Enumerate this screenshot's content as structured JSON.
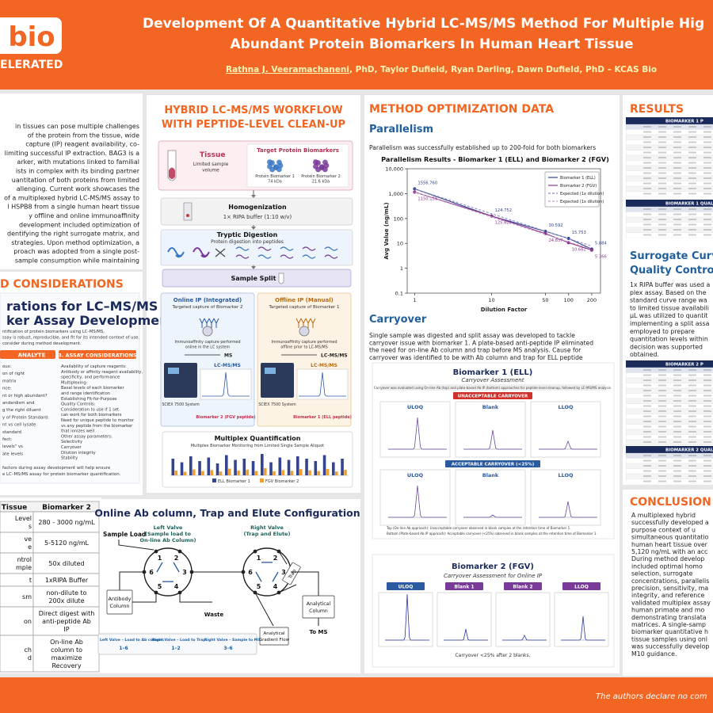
{
  "header": {
    "logo_text": "bio",
    "logo_subtext": "ELERATED",
    "title_lines": [
      "Development Of A Quantitative Hybrid LC-MS/MS Method For Multiple Hig",
      "Abundant Protein Biomarkers In Human Heart Tissue"
    ],
    "authors_lead": "Rathna J. Veeramachaneni",
    "authors_rest": ", PhD, Taylor Dufield, Ryan Darling, Dawn Dufield, PhD – KCAS Bio"
  },
  "introduction": {
    "lines": [
      "in tissues can pose multiple challenges",
      "of the protein from the tissue, wide",
      "capture (IP) reagent availability, co-",
      "limiting successful IP extraction. BAG3 is a",
      "arker, with mutations linked to familial",
      "ists in complex with its binding partner",
      "uantitation of both proteins from limited",
      "allenging. Current work showcases the",
      "of a multiplexed hybrid LC-MS/MS assay to",
      "l HSPB8 from a single human heart tissue",
      "y offline and online immunoaffinity",
      "development included optimization of",
      "dentifying the right surrogate matrix, and",
      "strategies. Upon method optimization, a",
      "proach was adopted from a single post-",
      "sample consumption while maintaining"
    ]
  },
  "considerations": {
    "heading": "D CONSIDERATIONS",
    "figure_title_lines": [
      "rations for LC–MS/MS",
      "ker Assay Development"
    ],
    "intro_lines": [
      "ntification of protein biomarkers using LC–MS/MS,",
      "ssay is robust, reproducible, and fit for its intended context of use.",
      "consider during method development."
    ],
    "analyte_header": "ANALYTE",
    "analyte_items": [
      "ous:",
      "on of right",
      "matrix",
      "nce:",
      "nt or high abundant?",
      "andardism and",
      "g the right diluent",
      "y of Protein Standard:",
      "nt vs cell lysate",
      "standard",
      "fect:",
      "levels\" vs",
      "ate levels"
    ],
    "assay_header": "3. ASSAY CONSIDERATIONS",
    "assay_items": [
      "Availability of capture reagents:",
      "Antibody or affinity reagent availability,",
      "specificity, and performance",
      "Multiplexing:",
      "Basal levels of each biomarker",
      "and range identification",
      "Establishing Fit-for-Purpose",
      "Quality Controls:",
      "Consideration to use if 1 set",
      "can work for both biomarkers",
      "Need for unique peptide to monitor",
      "vs any peptide from the biomarker",
      "that ionizes well",
      "Other assay parameters:",
      "Selectivity",
      "Carryover",
      "Dilution integrity",
      "Stability"
    ],
    "footer_lines": [
      "factors during assay development will help ensure",
      "e LC–MS/MS assay for protein biomarker quantification."
    ]
  },
  "tissue_table": {
    "header": [
      "Tissue",
      "Biomarker 2"
    ],
    "rows": [
      [
        [
          "Level",
          "s"
        ],
        [
          "280 - 3000 ng/mL"
        ]
      ],
      [
        [
          "ve",
          "e"
        ],
        [
          "5-5120 ng/mL"
        ]
      ],
      [
        [
          "ntrol",
          "mple"
        ],
        [
          "50x diluted"
        ]
      ],
      [
        [
          "t"
        ],
        [
          "1xRIPA Buffer"
        ]
      ],
      [
        [
          "sm"
        ],
        [
          "non-dilute to",
          "200x dilute"
        ]
      ],
      [
        [
          "on"
        ],
        [
          "Direct digest with",
          "anti-peptide Ab",
          "IP"
        ]
      ],
      [
        [
          "ch",
          "d"
        ],
        [
          "On-line Ab",
          "column to",
          "maximize",
          "Recovery"
        ]
      ]
    ]
  },
  "workflow": {
    "heading_lines": [
      "HYBRID LC-MS/MS WORKFLOW",
      "WITH PEPTIDE-LEVEL CLEAN-UP"
    ],
    "tissue_label": "Tissue",
    "tissue_note_lines": [
      "Limited sample",
      "volume"
    ],
    "targets_title": "Target Protein Biomarkers",
    "protein1_lines": [
      "Protein Biomarker 1",
      "74 kDa"
    ],
    "protein2_lines": [
      "Protein Biomarker 2",
      "21.6 kDa"
    ],
    "homogenization": "Homogenization",
    "homogenization_note": "1× RIPA buffer (1:10 w/v)",
    "digestion": "Tryptic Digestion",
    "digestion_note": "Protein digestion into peptides",
    "split": "Sample Split",
    "online": {
      "title": "Online IP (Integrated)",
      "subtitle": "Targeted capture of Biomarker 2",
      "note_lines": [
        "Immunoaffinity capture performed",
        "online in the LC system"
      ],
      "ms": "MS",
      "system_title": "LC-MS/MS",
      "system_name": "SCIEX 7500 System",
      "peptide": "Biomarker 2 (FGV peptide)"
    },
    "offline": {
      "title": "Offline IP (Manual)",
      "subtitle": "Targeted capture of Biomarker 1",
      "note_lines": [
        "Immunoaffinity capture performed",
        "offline prior to LC-MS/MS"
      ],
      "ms": "LC-MS/MS",
      "system_title": "LC-MS/MS",
      "system_name": "SCIEX 7500 System",
      "peptide": "Biomarker 1 (ELL peptide)"
    },
    "multiplex": {
      "title": "Multiplex Quantification",
      "subtitle": "Multiplex Biomarker Monitoring from Limited Single Sample Aliquot",
      "ylim": [
        0,
        100
      ],
      "series": [
        {
          "name": "ELL Biomarker 1",
          "color": "#34448f",
          "values": [
            70,
            55,
            80,
            60,
            75,
            50,
            85,
            65,
            70,
            60,
            90,
            55,
            75,
            65,
            80,
            70,
            60,
            85,
            55,
            70
          ]
        },
        {
          "name": "FGV Biomarker 2",
          "color": "#f0a030",
          "values": [
            20,
            15,
            25,
            18,
            22,
            16,
            28,
            20,
            24,
            18,
            30,
            17,
            22,
            19,
            26,
            21,
            18,
            27,
            16,
            23
          ]
        }
      ]
    }
  },
  "online_config": {
    "title": "Online Ab column, Trap and Elute Configuration",
    "sample_load": "Sample Load",
    "left_valve_lines": [
      "Left Valve",
      "(Sample load to",
      "On-line Ab Column)"
    ],
    "right_valve_lines": [
      "Right Valve",
      "(Trap and Elute)"
    ],
    "left_ports": [
      "1",
      "2",
      "3",
      "4",
      "5",
      "6"
    ],
    "right_ports": [
      "1",
      "2",
      "3",
      "4",
      "5",
      "6"
    ],
    "antibody_column_lines": [
      "Antibody",
      "Column"
    ],
    "waste": "Waste",
    "trap": "Trap",
    "analytical_column_lines": [
      "Analytical",
      "Column"
    ],
    "gradient_lines": [
      "Analytical",
      "Gradient Flow"
    ],
    "to_ms": "To MS",
    "legend": [
      {
        "label": "Left Valve – Load to Ab column:",
        "ports": "1–6"
      },
      {
        "label": "Right Valve – Load to Trap:",
        "ports": "1–2"
      },
      {
        "label": "Right Valve – Sample to MS:",
        "ports": "3–6"
      }
    ]
  },
  "method_optimization": {
    "heading": "METHOD OPTIMIZATION DATA",
    "parallelism": {
      "heading": "Parallelism",
      "text": "Parallelism was successfully established up to 200-fold for both biomarkers",
      "chart": {
        "type": "line",
        "title": "Parallelism Results - Biomarker 1 (ELL) and Biomarker 2 (FGV)",
        "x_label": "Dilution Factor",
        "y_label": "Avg Value (ng/mL)",
        "log_x": true,
        "log_y": true,
        "x": [
          1,
          10,
          50,
          100,
          200
        ],
        "xlim": [
          0.8,
          260
        ],
        "ylim": [
          0.1,
          10000
        ],
        "xticks": [
          1,
          10,
          50,
          100,
          200
        ],
        "yticks": [
          0.1,
          1,
          10,
          100,
          {
            "value": 1000,
            "label": "1,000"
          },
          {
            "value": 10000,
            "label": "10,000"
          }
        ],
        "legend": "upper right",
        "series": [
          {
            "name": "Biomarker 1 (ELL)",
            "color": "#34448f",
            "line_style": "solid",
            "values": [
              1556.76,
              124.752,
              30.592,
              15.753,
              5.884
            ],
            "value_labels": [
              "1556.760",
              "124.752",
              "30.592",
              "15.753",
              "5.884"
            ]
          },
          {
            "name": "Biomarker 2 (FGV)",
            "color": "#8a3a8f",
            "line_style": "solid",
            "values": [
              1150.136,
              125.623,
              24.857,
              10.662,
              5.366
            ],
            "value_labels": [
              "1150.136",
              "125.623",
              "24.857",
              "10.662",
              "5.366"
            ]
          },
          {
            "name": "Expected (1x dilution)",
            "color": "#8c8fc8",
            "line_style": "dashed",
            "values": [
              1556.76,
              155.68,
              31.14,
              15.57,
              7.78
            ]
          },
          {
            "name": "Expected (1x dilution)",
            "color": "#c79ac8",
            "line_style": "dashed",
            "values": [
              1150.14,
              115.01,
              23.0,
              11.5,
              5.75
            ]
          }
        ]
      }
    },
    "carryover": {
      "heading": "Carryover",
      "text_lines": [
        "Single sample was digested and split assay was developed to tackle",
        "carryover issue with biomarker 1. A plate-based anti-peptide IP eliminated",
        "the need for on-line Ab column and trap before MS analysis. Cause for",
        "carryover was identified to be with Ab column and trap for ELL peptide"
      ],
      "biomarker1": {
        "title": "Biomarker 1 (ELL)",
        "subtitle": "Carryover Assessment",
        "note": "Carryover was evaluated using On-line Ab (top) and plate-based Ab IP (bottom) approaches for peptide level cleanup, followed by LC-MS/MS analysis.",
        "unacceptable": "UNACCEPTABLE CARRYOVER",
        "acceptable": "ACCEPTABLE CARRYOVER (<25%)",
        "panels": [
          "ULOQ",
          "Blank",
          "LLOQ"
        ],
        "footnotes": [
          "Top (On-line Ab approach): Unacceptable carryover observed in blank samples at the retention time of Biomarker 1.",
          "Bottom (Plate-based Ab IP approach): Acceptable carryover (<25%) observed in blank samples at the retention time of Biomarker 1."
        ]
      },
      "biomarker2": {
        "title": "Biomarker 2 (FGV)",
        "subtitle": "Carryover Assessment for Online IP",
        "panels": [
          "ULOQ",
          "Blank 1",
          "Blank 2",
          "LLOQ"
        ],
        "note": "Carryover <25% after 2 blanks."
      }
    }
  },
  "results": {
    "heading": "RESULTS",
    "table_headers": [
      "BIOMARKER 1 P",
      "BIOMARKER 1 QUALITY CONT",
      "BIOMARKER 2 P",
      "BIOMARKER 2 QUALITY CONTR"
    ],
    "surrogate_heading_lines": [
      "Surrogate Curve",
      "Quality Controls"
    ],
    "surrogate_lines": [
      "1x RIPA buffer was used a",
      "plex assay. Based on the",
      "standard curve range wa",
      "to limited tissue availabili",
      "µL was utilized to quantit",
      "implementing a split assa",
      "employed to prepare",
      "quantitation levels within",
      "decision was supported",
      "obtained."
    ]
  },
  "conclusion": {
    "heading": "CONCLUSION",
    "lines": [
      "A multiplexed hybrid",
      "successfully developed a",
      "purpose context of u",
      "simultaneous quantitatio",
      "human heart tissue over",
      "5,120 ng/mL with an acc",
      "During method develop",
      "included optimal homo",
      "selection, surrogate",
      "concentrations, parallelis",
      "precision, sensitivity, ma",
      "integrity, and reference",
      "validated multiplex assay",
      "human primate and mo",
      "demonstrating translata",
      "matrices. A single-samp",
      "biomarker quantitative h",
      "tissue samples using onl",
      "was successfully develop",
      "M10 guidance."
    ]
  },
  "footer": {
    "text": "The authors declare no com"
  }
}
